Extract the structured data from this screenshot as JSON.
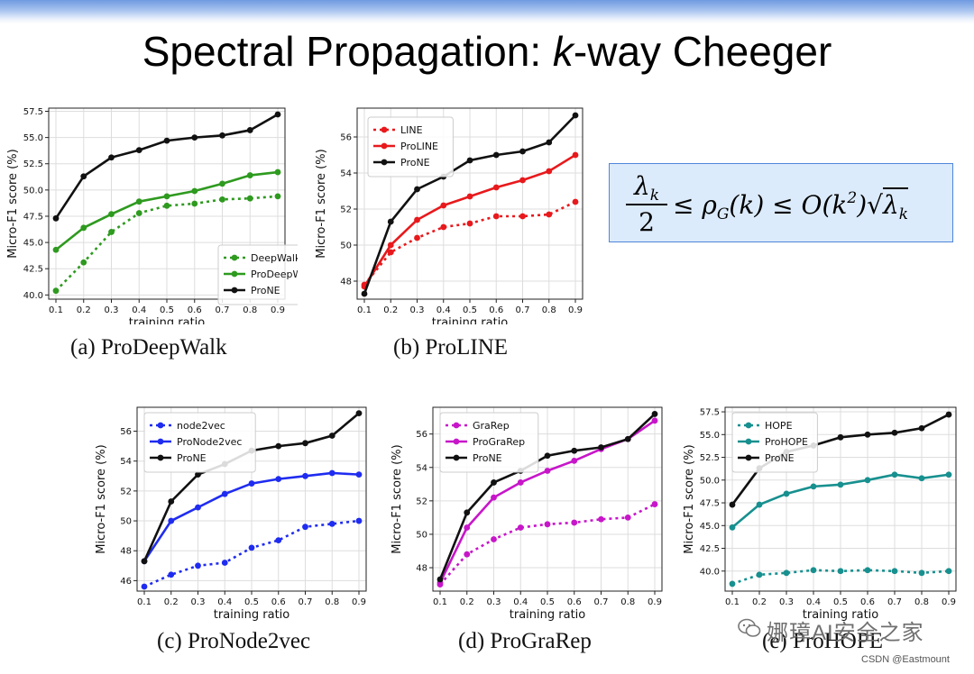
{
  "slide": {
    "title_prefix": "Spectral Propagation: ",
    "title_italic": "k",
    "title_suffix": "-way Cheeger",
    "formula": {
      "lhs_num": "λk",
      "lhs_den": "2",
      "rest": "≤ ρG(k) ≤ O(k²)√λk"
    },
    "watermark": "娜璋AI安全之家",
    "credit": "CSDN @Eastmount"
  },
  "colors": {
    "black": "#111111",
    "green": "#2e9a1f",
    "red": "#e8191c",
    "blue": "#1f2cf0",
    "magenta": "#c716c9",
    "teal": "#17908f"
  },
  "chart_data": [
    {
      "type": "line",
      "caption": "(a) ProDeepWalk",
      "xlabel": "training ratio",
      "ylabel": "Micro-F1 score (%)",
      "x": [
        0.1,
        0.2,
        0.3,
        0.4,
        0.5,
        0.6,
        0.7,
        0.8,
        0.9
      ],
      "xticks": [
        "0.1",
        "0.2",
        "0.3",
        "0.4",
        "0.5",
        "0.6",
        "0.7",
        "0.8",
        "0.9"
      ],
      "ylim": [
        39.6,
        57.8
      ],
      "yticks": [
        "40.0",
        "42.5",
        "45.0",
        "47.5",
        "50.0",
        "52.5",
        "55.0",
        "57.5"
      ],
      "ytick_values": [
        40.0,
        42.5,
        45.0,
        47.5,
        50.0,
        52.5,
        55.0,
        57.5
      ],
      "grid": true,
      "legend": "lower-right",
      "series": [
        {
          "name": "DeepWalk",
          "color": "green",
          "dashed": true,
          "values": [
            40.4,
            43.1,
            46.0,
            47.8,
            48.5,
            48.7,
            49.1,
            49.2,
            49.4
          ]
        },
        {
          "name": "ProDeepWalk",
          "color": "green",
          "dashed": false,
          "values": [
            44.3,
            46.4,
            47.7,
            48.9,
            49.4,
            49.9,
            50.6,
            51.4,
            51.7
          ]
        },
        {
          "name": "ProNE",
          "color": "black",
          "dashed": false,
          "values": [
            47.3,
            51.3,
            53.1,
            53.8,
            54.7,
            55.0,
            55.2,
            55.7,
            57.2
          ]
        }
      ]
    },
    {
      "type": "line",
      "caption": "(b) ProLINE",
      "xlabel": "training ratio",
      "ylabel": "Micro-F1 score (%)",
      "x": [
        0.1,
        0.2,
        0.3,
        0.4,
        0.5,
        0.6,
        0.7,
        0.8,
        0.9
      ],
      "xticks": [
        "0.1",
        "0.2",
        "0.3",
        "0.4",
        "0.5",
        "0.6",
        "0.7",
        "0.8",
        "0.9"
      ],
      "ylim": [
        47.0,
        57.6
      ],
      "yticks": [
        "48",
        "50",
        "52",
        "54",
        "56"
      ],
      "ytick_values": [
        48,
        50,
        52,
        54,
        56
      ],
      "grid": true,
      "legend": "upper-left",
      "series": [
        {
          "name": "LINE",
          "color": "red",
          "dashed": true,
          "values": [
            47.8,
            49.6,
            50.4,
            51.0,
            51.2,
            51.6,
            51.6,
            51.7,
            52.4
          ]
        },
        {
          "name": "ProLINE",
          "color": "red",
          "dashed": false,
          "values": [
            47.7,
            50.0,
            51.4,
            52.2,
            52.7,
            53.2,
            53.6,
            54.1,
            55.0
          ]
        },
        {
          "name": "ProNE",
          "color": "black",
          "dashed": false,
          "values": [
            47.3,
            51.3,
            53.1,
            53.8,
            54.7,
            55.0,
            55.2,
            55.7,
            57.2
          ]
        }
      ]
    },
    {
      "type": "line",
      "caption": "(c) ProNode2vec",
      "xlabel": "training ratio",
      "ylabel": "Micro-F1 score (%)",
      "x": [
        0.1,
        0.2,
        0.3,
        0.4,
        0.5,
        0.6,
        0.7,
        0.8,
        0.9
      ],
      "xticks": [
        "0.1",
        "0.2",
        "0.3",
        "0.4",
        "0.5",
        "0.6",
        "0.7",
        "0.8",
        "0.9"
      ],
      "ylim": [
        45.3,
        57.6
      ],
      "yticks": [
        "46",
        "48",
        "50",
        "52",
        "54",
        "56"
      ],
      "ytick_values": [
        46,
        48,
        50,
        52,
        54,
        56
      ],
      "grid": true,
      "legend": "upper-left",
      "series": [
        {
          "name": "node2vec",
          "color": "blue",
          "dashed": true,
          "values": [
            45.6,
            46.4,
            47.0,
            47.2,
            48.2,
            48.7,
            49.6,
            49.8,
            50.0
          ]
        },
        {
          "name": "ProNode2vec",
          "color": "blue",
          "dashed": false,
          "values": [
            47.3,
            50.0,
            50.9,
            51.8,
            52.5,
            52.8,
            53.0,
            53.2,
            53.1
          ]
        },
        {
          "name": "ProNE",
          "color": "black",
          "dashed": false,
          "values": [
            47.3,
            51.3,
            53.1,
            53.8,
            54.7,
            55.0,
            55.2,
            55.7,
            57.2
          ]
        }
      ]
    },
    {
      "type": "line",
      "caption": "(d) ProGraRep",
      "xlabel": "training ratio",
      "ylabel": "Micro-F1 score (%)",
      "x": [
        0.1,
        0.2,
        0.3,
        0.4,
        0.5,
        0.6,
        0.7,
        0.8,
        0.9
      ],
      "xticks": [
        "0.1",
        "0.2",
        "0.3",
        "0.4",
        "0.5",
        "0.6",
        "0.7",
        "0.8",
        "0.9"
      ],
      "ylim": [
        46.6,
        57.6
      ],
      "yticks": [
        "48",
        "50",
        "52",
        "54",
        "56"
      ],
      "ytick_values": [
        48,
        50,
        52,
        54,
        56
      ],
      "grid": true,
      "legend": "upper-left",
      "series": [
        {
          "name": "GraRep",
          "color": "magenta",
          "dashed": true,
          "values": [
            47.0,
            48.8,
            49.7,
            50.4,
            50.6,
            50.7,
            50.9,
            51.0,
            51.8
          ]
        },
        {
          "name": "ProGraRep",
          "color": "magenta",
          "dashed": false,
          "values": [
            47.1,
            50.4,
            52.2,
            53.1,
            53.8,
            54.4,
            55.1,
            55.7,
            56.8
          ]
        },
        {
          "name": "ProNE",
          "color": "black",
          "dashed": false,
          "values": [
            47.3,
            51.3,
            53.1,
            53.8,
            54.7,
            55.0,
            55.2,
            55.7,
            57.2
          ]
        }
      ]
    },
    {
      "type": "line",
      "caption": "(e) ProHOPE",
      "xlabel": "training ratio",
      "ylabel": "Micro-F1 score (%)",
      "x": [
        0.1,
        0.2,
        0.3,
        0.4,
        0.5,
        0.6,
        0.7,
        0.8,
        0.9
      ],
      "xticks": [
        "0.1",
        "0.2",
        "0.3",
        "0.4",
        "0.5",
        "0.6",
        "0.7",
        "0.8",
        "0.9"
      ],
      "ylim": [
        37.8,
        58.0
      ],
      "yticks": [
        "40.0",
        "42.5",
        "45.0",
        "47.5",
        "50.0",
        "52.5",
        "55.0",
        "57.5"
      ],
      "ytick_values": [
        40.0,
        42.5,
        45.0,
        47.5,
        50.0,
        52.5,
        55.0,
        57.5
      ],
      "grid": true,
      "legend": "upper-left",
      "series": [
        {
          "name": "HOPE",
          "color": "teal",
          "dashed": true,
          "values": [
            38.6,
            39.6,
            39.8,
            40.1,
            40.0,
            40.1,
            40.0,
            39.8,
            40.0
          ]
        },
        {
          "name": "ProHOPE",
          "color": "teal",
          "dashed": false,
          "values": [
            44.8,
            47.3,
            48.5,
            49.3,
            49.5,
            50.0,
            50.6,
            50.2,
            50.6
          ]
        },
        {
          "name": "ProNE",
          "color": "black",
          "dashed": false,
          "values": [
            47.3,
            51.3,
            53.1,
            53.8,
            54.7,
            55.0,
            55.2,
            55.7,
            57.2
          ]
        }
      ]
    }
  ]
}
